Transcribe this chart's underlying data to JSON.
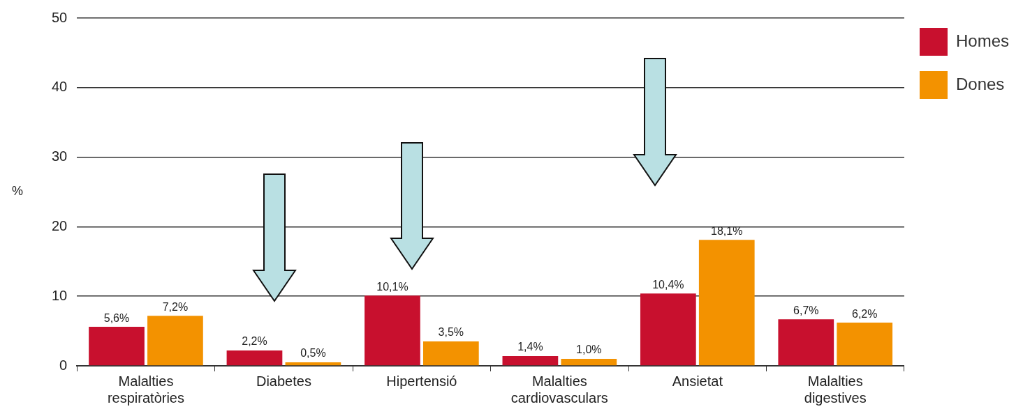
{
  "chart_data": {
    "type": "bar",
    "ylabel": "%",
    "categories": [
      "Malalties respiratòries",
      "Diabetes",
      "Hipertensió",
      "Malalties cardiovasculars",
      "Ansietat",
      "Malalties digestives"
    ],
    "series": [
      {
        "name": "Homes",
        "color": "#c8102e",
        "values": [
          5.6,
          2.2,
          10.1,
          1.4,
          10.4,
          6.7
        ],
        "value_labels": [
          "5,6%",
          "2,2%",
          "10,1%",
          "1,4%",
          "10,4%",
          "6,7%"
        ]
      },
      {
        "name": "Dones",
        "color": "#f39200",
        "values": [
          7.2,
          0.5,
          3.5,
          1.0,
          18.1,
          6.2
        ],
        "value_labels": [
          "7,2%",
          "0,5%",
          "3,5%",
          "1,0%",
          "18,1%",
          "6,2%"
        ]
      }
    ],
    "ylim": [
      0,
      50
    ],
    "yticks": [
      0,
      10,
      20,
      30,
      40,
      50
    ],
    "grid": "y",
    "legend": "top right"
  }
}
